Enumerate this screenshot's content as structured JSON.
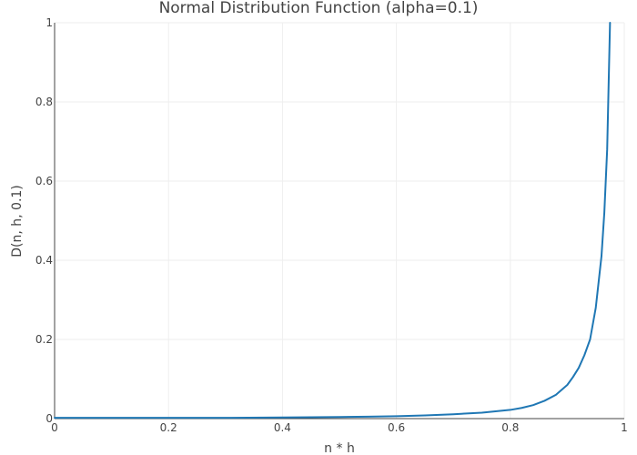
{
  "chart_data": {
    "type": "line",
    "title": "Normal Distribution Function (alpha=0.1)",
    "xlabel": "n * h",
    "ylabel": "D(n, h, 0.1)",
    "xlim": [
      0,
      1
    ],
    "ylim": [
      0,
      1
    ],
    "x_ticks": [
      "0",
      "0.2",
      "0.4",
      "0.6",
      "0.8",
      "1"
    ],
    "y_ticks": [
      "0",
      "0.2",
      "0.4",
      "0.6",
      "0.8",
      "1"
    ],
    "grid": true,
    "legend": "none",
    "series": [
      {
        "color": "#1f77b4",
        "x": [
          0,
          0.1,
          0.2,
          0.3,
          0.4,
          0.5,
          0.55,
          0.6,
          0.65,
          0.7,
          0.75,
          0.8,
          0.82,
          0.84,
          0.86,
          0.88,
          0.9,
          0.91,
          0.92,
          0.93,
          0.94,
          0.95,
          0.96,
          0.965,
          0.97,
          0.975
        ],
        "y": [
          0.002,
          0.002,
          0.002,
          0.002,
          0.003,
          0.004,
          0.005,
          0.006,
          0.008,
          0.011,
          0.015,
          0.022,
          0.027,
          0.034,
          0.045,
          0.06,
          0.085,
          0.105,
          0.128,
          0.16,
          0.2,
          0.28,
          0.41,
          0.52,
          0.68,
          1.0
        ]
      }
    ]
  }
}
